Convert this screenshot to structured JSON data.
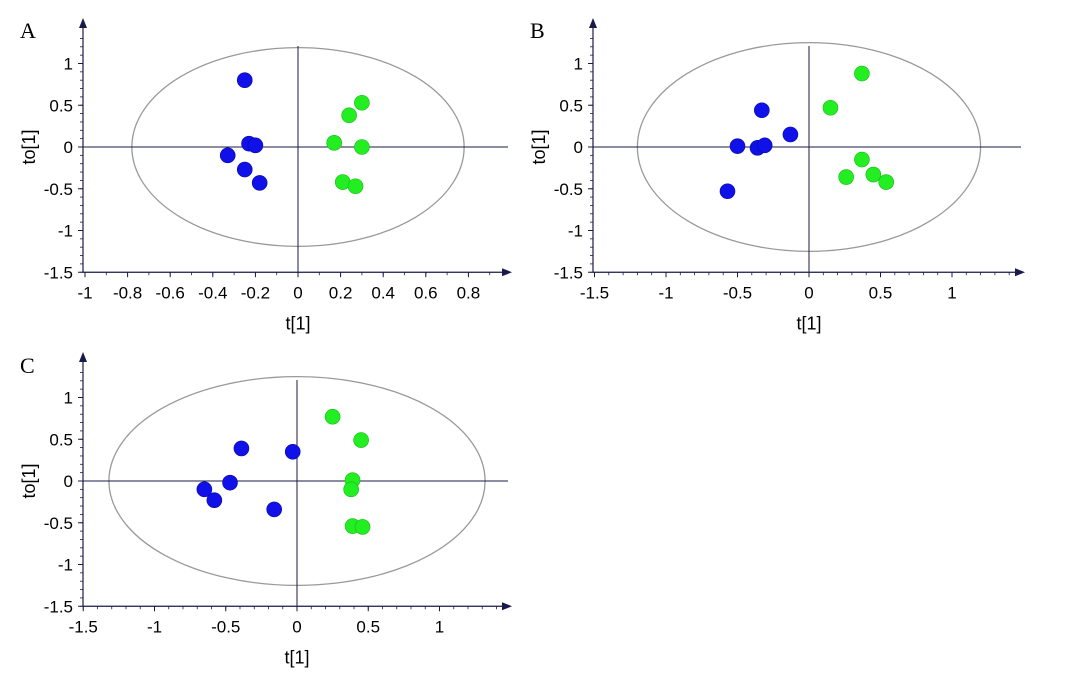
{
  "colors": {
    "group1": "#1010e8",
    "group2": "#22ee22",
    "axis": "#1a1a4a",
    "ellipse": "#999999"
  },
  "chart_data": [
    {
      "panel": "A",
      "type": "scatter",
      "xlabel": "t[1]",
      "ylabel": "to[1]",
      "xticks": [
        "-1",
        "-0.8",
        "-0.6",
        "-0.4",
        "-0.2",
        "0",
        "0.2",
        "0.4",
        "0.6",
        "0.8"
      ],
      "yticks": [
        "1",
        "0.5",
        "0",
        "-0.5",
        "-1",
        "-1.5"
      ],
      "xlim": [
        -1,
        1.0
      ],
      "ylim": [
        -1.5,
        1.45
      ],
      "ellipse": {
        "cx": 0,
        "cy": 0,
        "rx": 0.78,
        "ry": 1.19
      },
      "series": [
        {
          "name": "group1",
          "color": "#1010e8",
          "points": [
            [
              -0.25,
              0.8
            ],
            [
              -0.23,
              0.04
            ],
            [
              -0.2,
              0.02
            ],
            [
              -0.33,
              -0.1
            ],
            [
              -0.25,
              -0.27
            ],
            [
              -0.18,
              -0.43
            ]
          ]
        },
        {
          "name": "group2",
          "color": "#22ee22",
          "points": [
            [
              0.3,
              0.53
            ],
            [
              0.24,
              0.38
            ],
            [
              0.17,
              0.05
            ],
            [
              0.3,
              0.0
            ],
            [
              0.21,
              -0.42
            ],
            [
              0.27,
              -0.47
            ]
          ]
        }
      ]
    },
    {
      "panel": "B",
      "type": "scatter",
      "xlabel": "t[1]",
      "ylabel": "to[1]",
      "xticks": [
        "-1.5",
        "-1",
        "-0.5",
        "0",
        "0.5",
        "1"
      ],
      "yticks": [
        "1",
        "0.5",
        "0",
        "-0.5",
        "-1",
        "-1.5"
      ],
      "xlim": [
        -1.5,
        1.55
      ],
      "ylim": [
        -1.5,
        1.45
      ],
      "ellipse": {
        "cx": 0,
        "cy": 0,
        "rx": 1.2,
        "ry": 1.25
      },
      "series": [
        {
          "name": "group1",
          "color": "#1010e8",
          "points": [
            [
              -0.33,
              0.44
            ],
            [
              -0.13,
              0.15
            ],
            [
              -0.5,
              0.01
            ],
            [
              -0.36,
              -0.01
            ],
            [
              -0.31,
              0.02
            ],
            [
              -0.57,
              -0.53
            ]
          ]
        },
        {
          "name": "group2",
          "color": "#22ee22",
          "points": [
            [
              0.37,
              0.88
            ],
            [
              0.15,
              0.47
            ],
            [
              0.37,
              -0.15
            ],
            [
              0.26,
              -0.36
            ],
            [
              0.45,
              -0.33
            ],
            [
              0.54,
              -0.42
            ]
          ]
        }
      ]
    },
    {
      "panel": "C",
      "type": "scatter",
      "xlabel": "t[1]",
      "ylabel": "to[1]",
      "xticks": [
        "-1.5",
        "-1",
        "-0.5",
        "0",
        "0.5",
        "1"
      ],
      "yticks": [
        "1",
        "0.5",
        "0",
        "-0.5",
        "-1",
        "-1.5"
      ],
      "xlim": [
        -1.5,
        1.55
      ],
      "ylim": [
        -1.5,
        1.45
      ],
      "ellipse": {
        "cx": 0,
        "cy": 0,
        "rx": 1.32,
        "ry": 1.25
      },
      "series": [
        {
          "name": "group1",
          "color": "#1010e8",
          "points": [
            [
              -0.39,
              0.39
            ],
            [
              -0.03,
              0.35
            ],
            [
              -0.47,
              -0.02
            ],
            [
              -0.65,
              -0.1
            ],
            [
              -0.58,
              -0.23
            ],
            [
              -0.16,
              -0.34
            ]
          ]
        },
        {
          "name": "group2",
          "color": "#22ee22",
          "points": [
            [
              0.25,
              0.77
            ],
            [
              0.45,
              0.49
            ],
            [
              0.39,
              0.01
            ],
            [
              0.38,
              -0.1
            ],
            [
              0.39,
              -0.54
            ],
            [
              0.46,
              -0.55
            ]
          ]
        }
      ]
    }
  ]
}
